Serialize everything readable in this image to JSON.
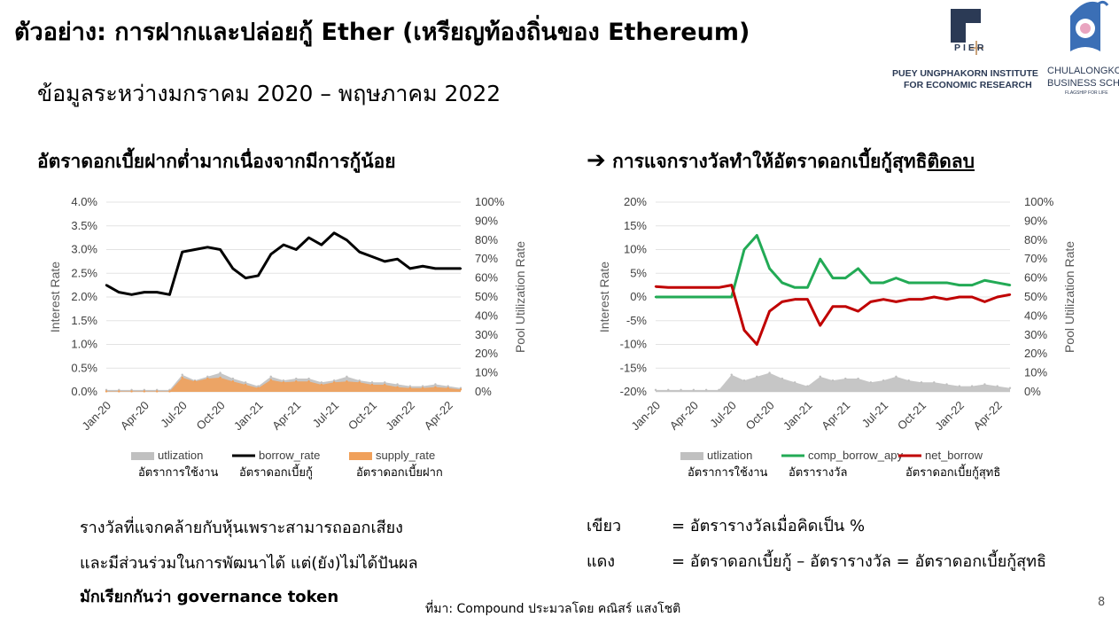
{
  "header": {
    "title": "ตัวอย่าง: การฝากและปล่อยกู้ Ether (เหรียญท้องถิ่นของ Ethereum)",
    "subtitle": "ข้อมูลระหว่างมกราคม 2020 – พฤษภาคม 2022"
  },
  "logos": {
    "pier_mark": "PIER",
    "pier_line1": "PUEY UNGPHAKORN INSTITUTE",
    "pier_line2": "FOR ECONOMIC RESEARCH",
    "chula_line1": "CHULALONGKORN",
    "chula_line2": "BUSINESS SCHOOL",
    "chula_line3": "FLAGSHIP FOR LIFE"
  },
  "left_chart_title": "อัตราดอกเบี้ยฝากต่ำมากเนื่องจากมีการกู้น้อย",
  "right_chart_title": {
    "arrow": "➔",
    "text": "การแจกรางวัลทำให้อัตราดอกเบี้ยกู้สุทธิ",
    "underlined": "ติดลบ"
  },
  "colors": {
    "utilization": "#c0c0c0",
    "borrow_rate": "#000000",
    "supply_rate": "#f0a05a",
    "comp_borrow_apy": "#22aa55",
    "net_borrow": "#c00000"
  },
  "chart_data": [
    {
      "type": "line",
      "ylabel": "Interest Rate",
      "y2label": "Pool Utilization Rate",
      "ylim": [
        0,
        4.0
      ],
      "y_ticks": [
        "0.0%",
        "0.5%",
        "1.0%",
        "1.5%",
        "2.0%",
        "2.5%",
        "3.0%",
        "3.5%",
        "4.0%"
      ],
      "y2lim": [
        0,
        100
      ],
      "y2_ticks": [
        "0%",
        "10%",
        "20%",
        "30%",
        "40%",
        "50%",
        "60%",
        "70%",
        "80%",
        "90%",
        "100%"
      ],
      "x_ticks": [
        "Jan-20",
        "Apr-20",
        "Jul-20",
        "Oct-20",
        "Jan-21",
        "Apr-21",
        "Jul-21",
        "Oct-21",
        "Jan-22",
        "Apr-22"
      ],
      "x": [
        "2020-01",
        "2020-02",
        "2020-03",
        "2020-04",
        "2020-05",
        "2020-06",
        "2020-07",
        "2020-08",
        "2020-09",
        "2020-10",
        "2020-11",
        "2020-12",
        "2021-01",
        "2021-02",
        "2021-03",
        "2021-04",
        "2021-05",
        "2021-06",
        "2021-07",
        "2021-08",
        "2021-09",
        "2021-10",
        "2021-11",
        "2021-12",
        "2022-01",
        "2022-02",
        "2022-03",
        "2022-04",
        "2022-05"
      ],
      "series": [
        {
          "name": "utlization",
          "name_th": "อัตราการใช้งาน",
          "kind": "area",
          "axis": "right",
          "values": [
            1,
            1,
            1,
            1,
            1,
            1,
            9,
            6,
            8,
            10,
            7,
            5,
            3,
            8,
            6,
            7,
            7,
            5,
            6,
            8,
            6,
            5,
            5,
            4,
            3,
            3,
            4,
            3,
            2
          ]
        },
        {
          "name": "borrow_rate",
          "name_th": "อัตราดอกเบี้ยกู้",
          "kind": "line",
          "axis": "left",
          "values": [
            2.25,
            2.1,
            2.05,
            2.1,
            2.1,
            2.05,
            2.95,
            3.0,
            3.05,
            3.0,
            2.6,
            2.4,
            2.45,
            2.9,
            3.1,
            3.0,
            3.25,
            3.1,
            3.35,
            3.2,
            2.95,
            2.85,
            2.75,
            2.8,
            2.6,
            2.65,
            2.6,
            2.6,
            2.6
          ]
        },
        {
          "name": "supply_rate",
          "name_th": "อัตราดอกเบี้ยฝาก",
          "kind": "area",
          "axis": "left",
          "values": [
            0.01,
            0.01,
            0.01,
            0.01,
            0.01,
            0.01,
            0.3,
            0.22,
            0.28,
            0.3,
            0.22,
            0.15,
            0.08,
            0.25,
            0.2,
            0.22,
            0.22,
            0.15,
            0.2,
            0.22,
            0.2,
            0.15,
            0.15,
            0.1,
            0.08,
            0.08,
            0.1,
            0.08,
            0.05
          ]
        }
      ]
    },
    {
      "type": "line",
      "ylabel": "Interest Rate",
      "y2label": "Pool Utilization Rate",
      "ylim": [
        -20,
        20
      ],
      "y_ticks": [
        "-20%",
        "-15%",
        "-10%",
        "-5%",
        "0%",
        "5%",
        "10%",
        "15%",
        "20%"
      ],
      "y2lim": [
        0,
        100
      ],
      "y2_ticks": [
        "0%",
        "10%",
        "20%",
        "30%",
        "40%",
        "50%",
        "60%",
        "70%",
        "80%",
        "90%",
        "100%"
      ],
      "x_ticks": [
        "Jan-20",
        "Apr-20",
        "Jul-20",
        "Oct-20",
        "Jan-21",
        "Apr-21",
        "Jul-21",
        "Oct-21",
        "Jan-22",
        "Apr-22"
      ],
      "x": [
        "2020-01",
        "2020-02",
        "2020-03",
        "2020-04",
        "2020-05",
        "2020-06",
        "2020-07",
        "2020-08",
        "2020-09",
        "2020-10",
        "2020-11",
        "2020-12",
        "2021-01",
        "2021-02",
        "2021-03",
        "2021-04",
        "2021-05",
        "2021-06",
        "2021-07",
        "2021-08",
        "2021-09",
        "2021-10",
        "2021-11",
        "2021-12",
        "2022-01",
        "2022-02",
        "2022-03",
        "2022-04",
        "2022-05"
      ],
      "series": [
        {
          "name": "utlization",
          "name_th": "อัตราการใช้งาน",
          "kind": "area",
          "axis": "right",
          "values": [
            1,
            1,
            1,
            1,
            1,
            1,
            9,
            6,
            8,
            10,
            7,
            5,
            3,
            8,
            6,
            7,
            7,
            5,
            6,
            8,
            6,
            5,
            5,
            4,
            3,
            3,
            4,
            3,
            2
          ]
        },
        {
          "name": "comp_borrow_apy",
          "name_th": "อัตรารางวัล",
          "kind": "line",
          "axis": "left",
          "values": [
            0,
            0,
            0,
            0,
            0,
            0,
            0,
            10,
            13,
            6,
            3,
            2,
            2,
            8,
            4,
            4,
            6,
            3,
            3,
            4,
            3,
            3,
            3,
            3,
            2.5,
            2.5,
            3.5,
            3,
            2.5
          ]
        },
        {
          "name": "net_borrow",
          "name_th": "อัตราดอกเบี้ยกู้สุทธิ",
          "kind": "line",
          "axis": "left",
          "values": [
            2.2,
            2.0,
            2.0,
            2.0,
            2.0,
            2.0,
            2.5,
            -7,
            -10,
            -3,
            -1,
            -0.5,
            -0.5,
            -6,
            -2,
            -2,
            -3,
            -1,
            -0.5,
            -1,
            -0.5,
            -0.5,
            0,
            -0.5,
            0,
            0,
            -1,
            0,
            0.5
          ]
        }
      ]
    }
  ],
  "notes_left": {
    "line1": "รางวัลที่แจกคล้ายกับหุ้นเพราะสามารถออกเสียง",
    "line2": "และมีส่วนร่วมในการพัฒนาได้ แต่(ยัง)ไม่ได้ปันผล",
    "line3": "มักเรียกกันว่า governance token"
  },
  "notes_right": {
    "green_label": "เขียว",
    "green_text": "= อัตรารางวัลเมื่อคิดเป็น %",
    "red_label": "แดง",
    "red_text": "= อัตราดอกเบี้ยกู้ – อัตรารางวัล = อัตราดอกเบี้ยกู้สุทธิ"
  },
  "footer": {
    "source": "ที่มา: Compound ประมวลโดย คณิสร์ แสงโชติ",
    "page": "8"
  }
}
